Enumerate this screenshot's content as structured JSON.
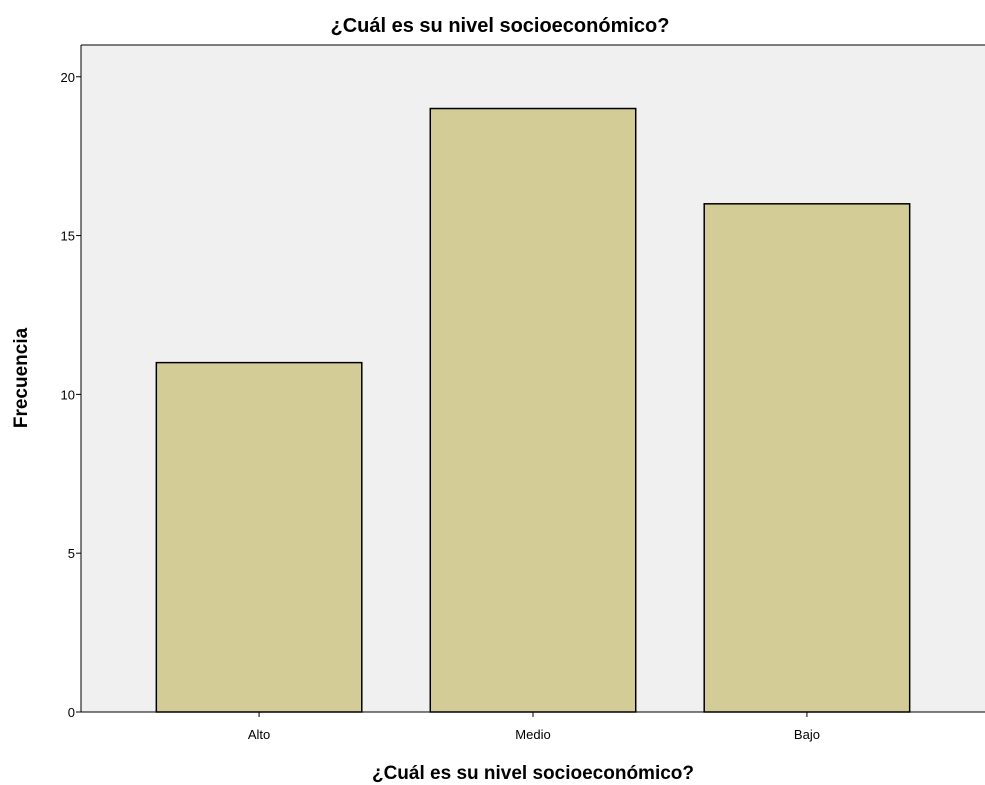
{
  "chart_data": {
    "type": "bar",
    "title": "¿Cuál es su nivel socioeconómico?",
    "xlabel": "¿Cuál es su nivel socioeconómico?",
    "ylabel": "Frecuencia",
    "categories": [
      "Alto",
      "Medio",
      "Bajo"
    ],
    "values": [
      11,
      19,
      16
    ],
    "ylim": [
      0,
      21
    ],
    "yticks": [
      "0",
      "5",
      "10",
      "15",
      "20"
    ],
    "grid": false,
    "legend": "none",
    "colors": {
      "bar_fill": "#d3cc96",
      "bar_stroke": "#000000",
      "plot_background": "#f0f0f0"
    }
  }
}
